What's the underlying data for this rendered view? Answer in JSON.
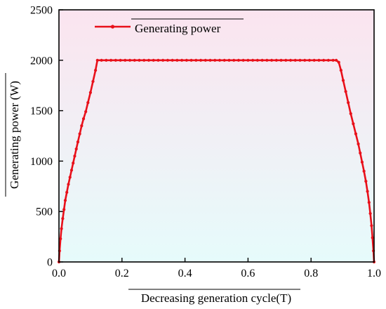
{
  "chart_data": {
    "type": "line",
    "title": "",
    "xlabel": "Decreasing generation cycle(T)",
    "ylabel": "Generating power (W)",
    "xlim": [
      0,
      1.0
    ],
    "ylim": [
      0,
      2500
    ],
    "xticks": [
      0.0,
      0.2,
      0.4,
      0.6,
      0.8,
      1.0
    ],
    "xtick_labels": [
      "0.0",
      "0.2",
      "0.4",
      "0.6",
      "0.8",
      "1.0"
    ],
    "yticks": [
      0,
      500,
      1000,
      1500,
      2000,
      2500
    ],
    "ytick_labels": [
      "0",
      "500",
      "1000",
      "1500",
      "2000",
      "2500"
    ],
    "grid": false,
    "legend_position": "top-left",
    "background": "vertical gradient, light pink at top to light cyan at bottom",
    "colors": {
      "series": "#e8101a",
      "bg_top": "#fbe4ef",
      "bg_bottom": "#e6fbfb"
    },
    "series": [
      {
        "name": "Generating power",
        "x": [
          0.0,
          0.002,
          0.005,
          0.008,
          0.012,
          0.016,
          0.02,
          0.025,
          0.03,
          0.035,
          0.04,
          0.045,
          0.05,
          0.055,
          0.06,
          0.066,
          0.072,
          0.078,
          0.085,
          0.092,
          0.1,
          0.108,
          0.116,
          0.122,
          0.135,
          0.15,
          0.165,
          0.18,
          0.195,
          0.21,
          0.225,
          0.24,
          0.255,
          0.27,
          0.285,
          0.3,
          0.315,
          0.33,
          0.345,
          0.36,
          0.375,
          0.39,
          0.405,
          0.42,
          0.435,
          0.45,
          0.465,
          0.48,
          0.495,
          0.51,
          0.525,
          0.54,
          0.555,
          0.57,
          0.585,
          0.6,
          0.615,
          0.63,
          0.645,
          0.66,
          0.675,
          0.69,
          0.705,
          0.72,
          0.735,
          0.75,
          0.765,
          0.78,
          0.795,
          0.81,
          0.825,
          0.84,
          0.855,
          0.87,
          0.88,
          0.888,
          0.895,
          0.902,
          0.91,
          0.918,
          0.926,
          0.934,
          0.942,
          0.95,
          0.956,
          0.962,
          0.968,
          0.974,
          0.979,
          0.984,
          0.988,
          0.992,
          0.995,
          0.998,
          1.0
        ],
        "values": [
          0,
          110,
          230,
          330,
          430,
          520,
          610,
          690,
          770,
          840,
          910,
          980,
          1050,
          1120,
          1190,
          1270,
          1350,
          1420,
          1490,
          1580,
          1680,
          1790,
          1900,
          2000,
          2000,
          2000,
          2000,
          2000,
          2000,
          2000,
          2000,
          2000,
          2000,
          2000,
          2000,
          2000,
          2000,
          2000,
          2000,
          2000,
          2000,
          2000,
          2000,
          2000,
          2000,
          2000,
          2000,
          2000,
          2000,
          2000,
          2000,
          2000,
          2000,
          2000,
          2000,
          2000,
          2000,
          2000,
          2000,
          2000,
          2000,
          2000,
          2000,
          2000,
          2000,
          2000,
          2000,
          2000,
          2000,
          2000,
          2000,
          2000,
          2000,
          2000,
          2000,
          1980,
          1900,
          1800,
          1690,
          1580,
          1470,
          1370,
          1270,
          1170,
          1080,
          990,
          900,
          800,
          700,
          590,
          480,
          360,
          240,
          110,
          0
        ]
      }
    ]
  }
}
